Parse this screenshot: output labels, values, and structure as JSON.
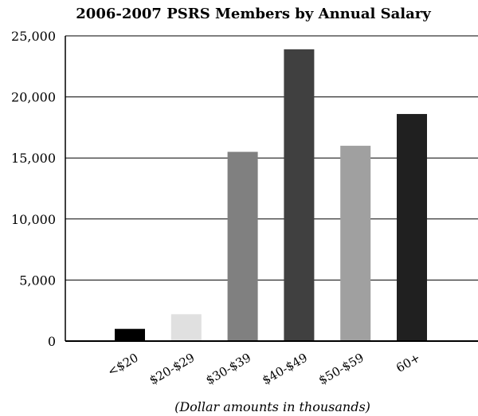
{
  "chart_data": {
    "type": "bar",
    "title": "2006-2007 PSRS Members by Annual Salary",
    "xlabel": "(Dollar amounts in thousands)",
    "ylabel": "",
    "categories": [
      "<$20",
      "$20-$29",
      "$30-$39",
      "$40-$49",
      "$50-$59",
      "60+"
    ],
    "values": [
      1000,
      2200,
      15500,
      23900,
      16000,
      18600
    ],
    "bar_colors": [
      "#000000",
      "#e0e0e0",
      "#808080",
      "#404040",
      "#a0a0a0",
      "#202020"
    ],
    "ylim": [
      0,
      25000
    ],
    "y_ticks": [
      0,
      5000,
      10000,
      15000,
      20000,
      25000
    ],
    "y_tick_labels": [
      "0",
      "5,000",
      "10,000",
      "15,000",
      "20,000",
      "25,000"
    ],
    "grid": true,
    "legend": "none"
  }
}
